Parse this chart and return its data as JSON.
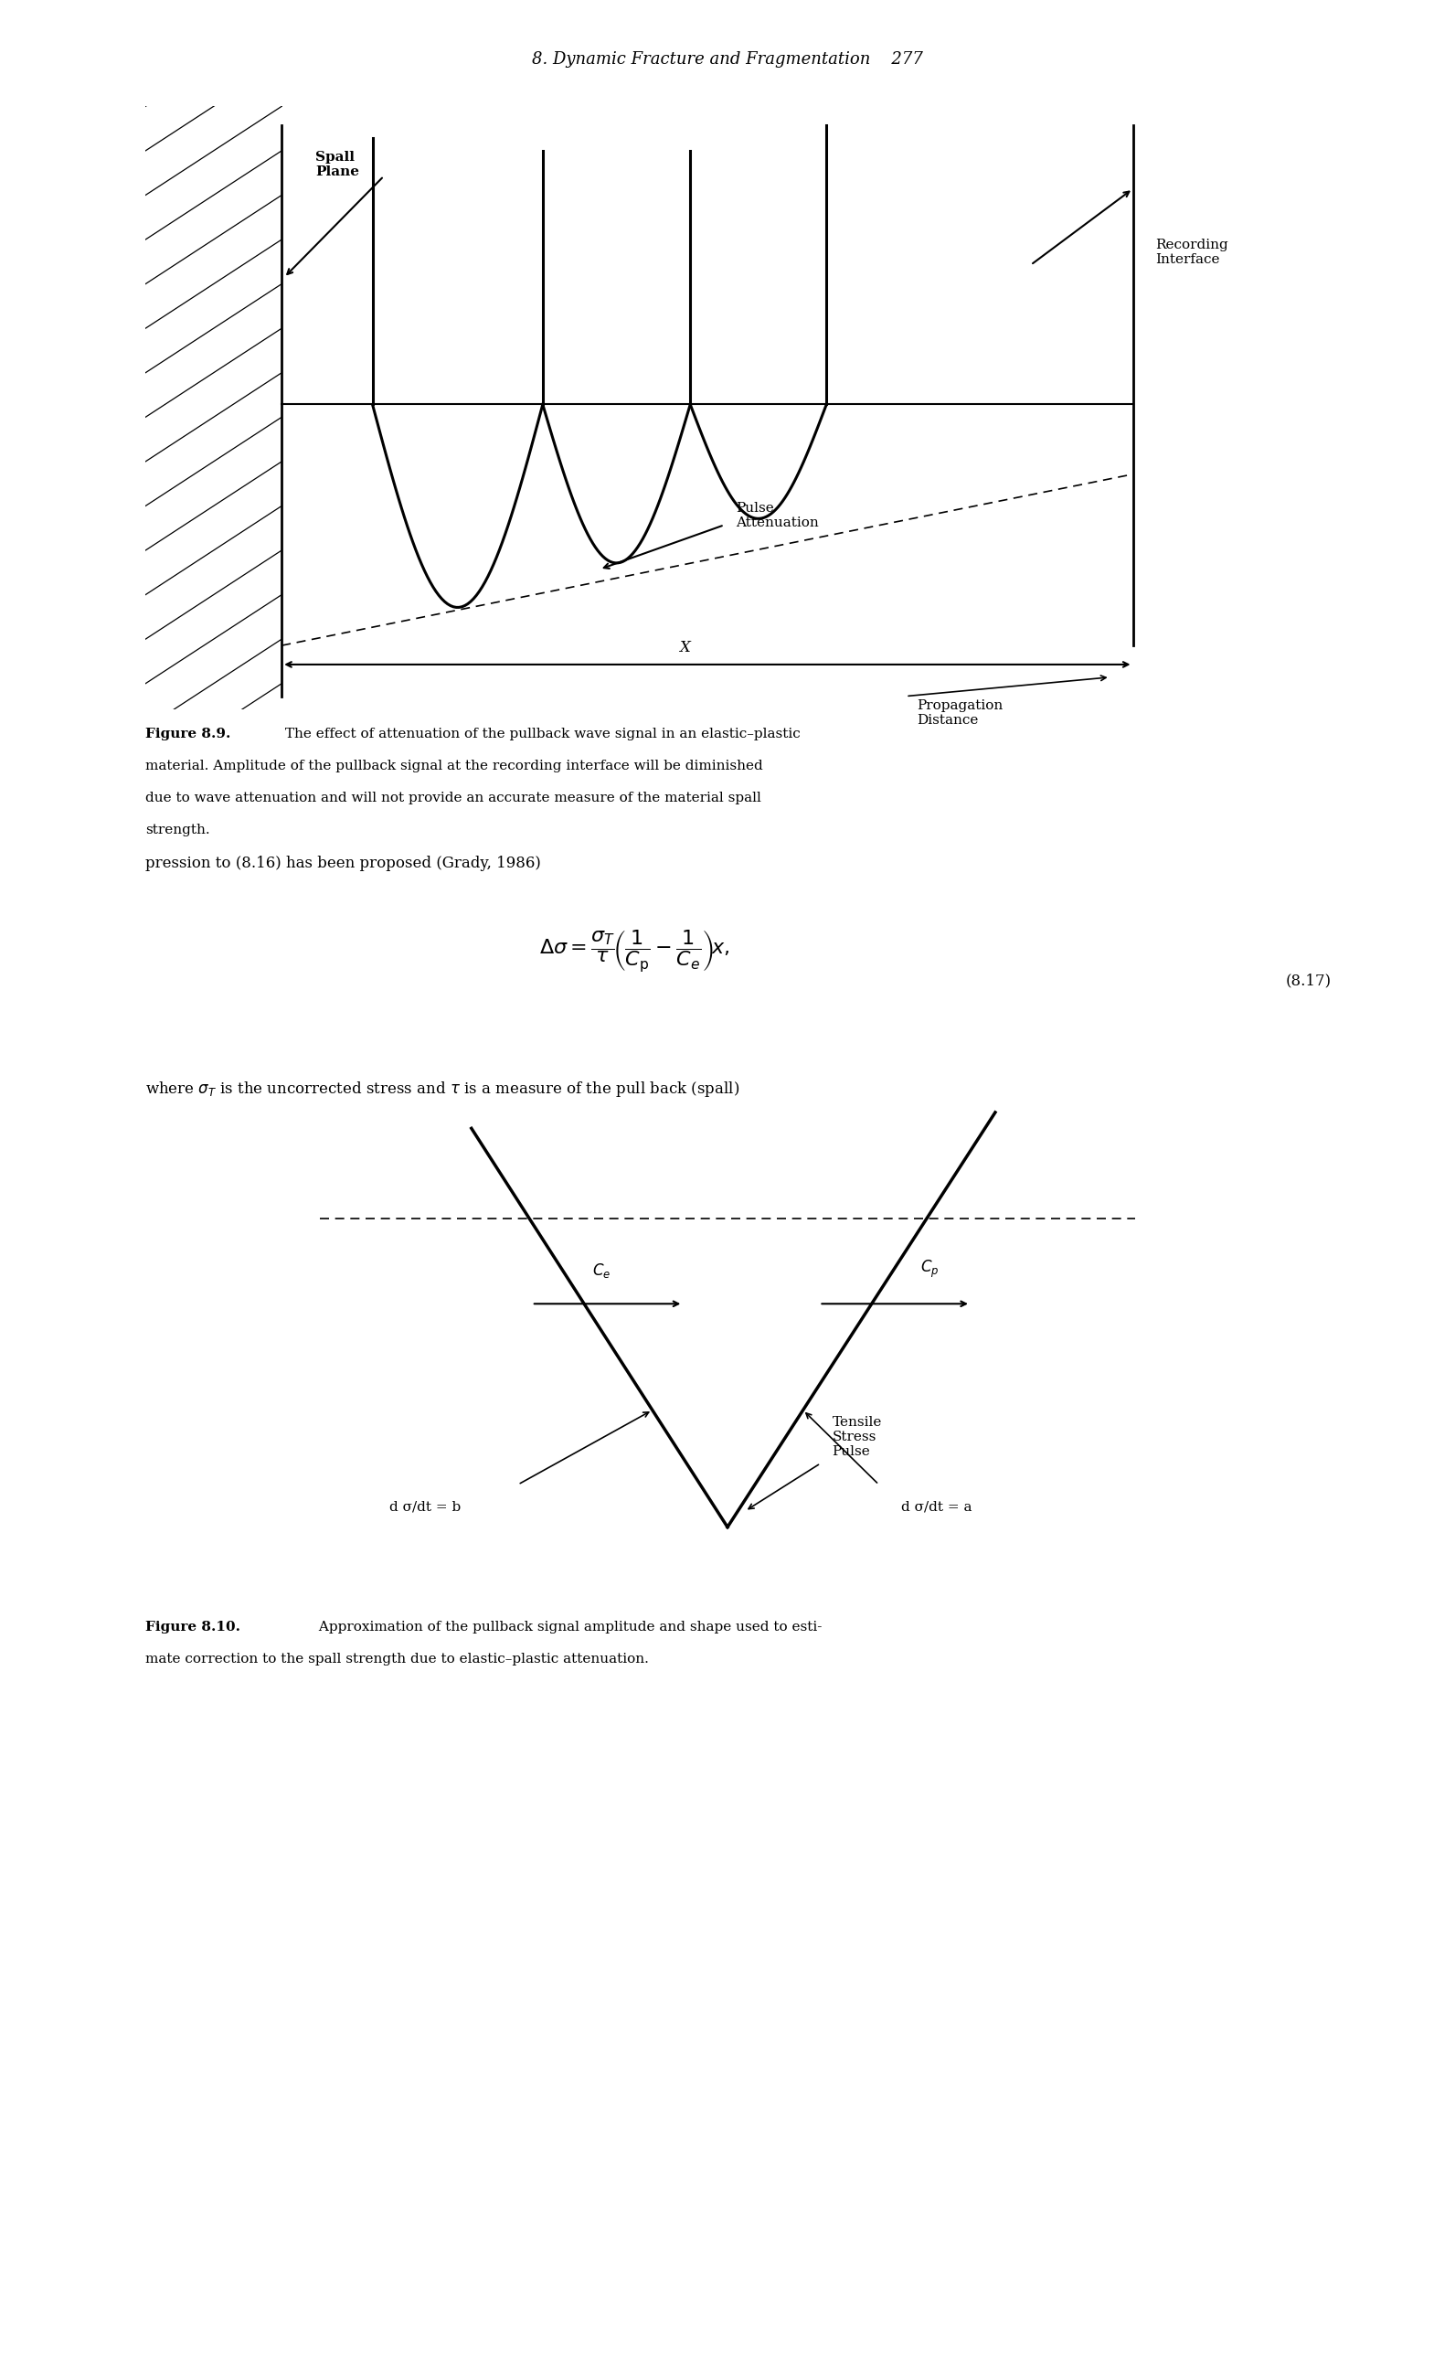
{
  "page_header": "8. Dynamic Fracture and Fragmentation",
  "page_number": "277",
  "fig89_caption_bold": "Figure 8.9.",
  "fig89_caption_rest": " The effect of attenuation of the pullback wave signal in an elastic–plastic material. Amplitude of the pullback signal at the recording interface will be diminished due to wave attenuation and will not provide an accurate measure of the material spall strength.",
  "fig810_caption_bold": "Figure 8.10.",
  "fig810_caption_rest": " Approximation of the pullback signal amplitude and shape used to estimate correction to the spall strength due to elastic–plastic attenuation.",
  "text_line1": "pression to (8.16) has been proposed (Grady, 1986)",
  "text_line2": "where $\\sigma_T$ is the uncorrected stress and $\\tau$ is a measure of the pull back (spall)",
  "eq_label": "(8.17)",
  "background_color": "#ffffff",
  "line_color": "#000000",
  "fig89_spall_label": "Spall\nPlane",
  "fig89_recording_label": "Recording\nInterface",
  "fig89_pulse_label": "Pulse\nAttenuation",
  "fig89_x_label": "X",
  "fig89_prop_label": "Propagation\nDistance",
  "fig810_ce_label": "$C_e$",
  "fig810_cp_label": "$C_p$",
  "fig810_b_label": "d σ/dt = b",
  "fig810_a_label": "d σ/dt = a",
  "fig810_tensile_label": "Tensile\nStress\nPulse"
}
